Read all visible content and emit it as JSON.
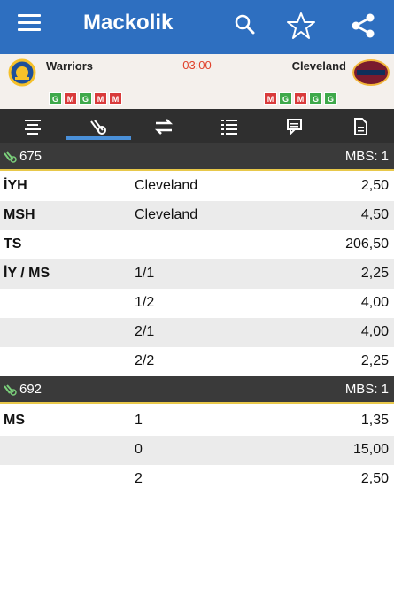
{
  "appbar": {
    "title": "Mackolik",
    "icons": [
      "menu-icon",
      "search-icon",
      "star-icon",
      "share-icon"
    ]
  },
  "match": {
    "home": {
      "name": "Warriors",
      "form": [
        "G",
        "M",
        "G",
        "M",
        "M"
      ]
    },
    "away": {
      "name": "Cleveland",
      "form": [
        "M",
        "G",
        "M",
        "G",
        "G"
      ]
    },
    "time": "03:00"
  },
  "tabs": [
    "summary-icon",
    "odds-icon",
    "h2h-icon",
    "list-icon",
    "comments-icon",
    "document-icon"
  ],
  "active_tab": 1,
  "sections": [
    {
      "code": "675",
      "mbs": "MBS: 1",
      "rows": [
        {
          "market": "İYH",
          "pick": "Cleveland",
          "odd": "2,50"
        },
        {
          "market": "MSH",
          "pick": "Cleveland",
          "odd": "4,50"
        },
        {
          "market": "TS",
          "pick": "",
          "odd": "206,50"
        },
        {
          "market": "İY / MS",
          "pick": "1/1",
          "odd": "2,25"
        },
        {
          "market": "",
          "pick": "1/2",
          "odd": "4,00"
        },
        {
          "market": "",
          "pick": "2/1",
          "odd": "4,00"
        },
        {
          "market": "",
          "pick": "2/2",
          "odd": "2,25"
        }
      ]
    },
    {
      "code": "692",
      "mbs": "MBS: 1",
      "rows": [
        {
          "market": "MS",
          "pick": "1",
          "odd": "1,35"
        },
        {
          "market": "",
          "pick": "0",
          "odd": "15,00"
        },
        {
          "market": "",
          "pick": "2",
          "odd": "2,50"
        }
      ]
    }
  ],
  "colors": {
    "appbar": "#2e6fc0",
    "win": "#3ea94a",
    "loss": "#d93b3b",
    "time": "#e0402a",
    "accent": "#4a90d9"
  }
}
